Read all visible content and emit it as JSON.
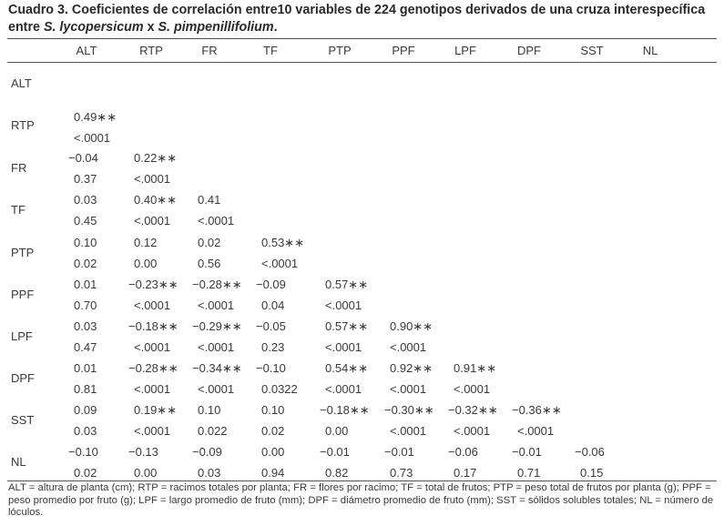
{
  "caption": {
    "prefix": "Cuadro 3. Coeficientes de correlación entre10 variables de 224 genotipos derivados de una cruza interespecífica entre ",
    "species1": "S. lycopersicum",
    "middle": " x ",
    "species2": "S. pimpenillifolium",
    "suffix": "."
  },
  "columns": [
    "ALT",
    "RTP",
    "FR",
    "TF",
    "PTP",
    "PPF",
    "LPF",
    "DPF",
    "SST",
    "NL"
  ],
  "rows": [
    {
      "label": "ALT",
      "r": [],
      "p": []
    },
    {
      "label": "RTP",
      "r": [
        "0.49**"
      ],
      "p": [
        "<.0001"
      ]
    },
    {
      "label": "FR",
      "r": [
        "-0.04",
        "0.22**"
      ],
      "p": [
        "0.37",
        "<.0001"
      ]
    },
    {
      "label": "TF",
      "r": [
        "0.03",
        "0.40**",
        "0.41"
      ],
      "p": [
        "0.45",
        "<.0001",
        "<.0001"
      ]
    },
    {
      "label": "PTP",
      "r": [
        "0.10",
        "0.12",
        "0.02",
        "0.53**"
      ],
      "p": [
        "0.02",
        "0.00",
        "0.56",
        "<.0001"
      ]
    },
    {
      "label": "PPF",
      "r": [
        "0.01",
        "-0.23**",
        "-0.28**",
        "-0.09",
        "0.57**"
      ],
      "p": [
        "0.70",
        "<.0001",
        "<.0001",
        "0.04",
        "<.0001"
      ]
    },
    {
      "label": "LPF",
      "r": [
        "0.03",
        "-0.18**",
        "-0.29**",
        "-0.05",
        "0.57**",
        "0.90**"
      ],
      "p": [
        "0.47",
        "<.0001",
        "<.0001",
        "0.23",
        "<.0001",
        "<.0001"
      ]
    },
    {
      "label": "DPF",
      "r": [
        "0.01",
        "-0.28**",
        "-0.34**",
        "-0.10",
        "0.54**",
        "0.92**",
        "0.91**"
      ],
      "p": [
        "0.81",
        "<.0001",
        "<.0001",
        "0.0322",
        "<.0001",
        "<.0001",
        "<.0001"
      ]
    },
    {
      "label": "SST",
      "r": [
        "0.09",
        "0.19**",
        "0.10",
        "0.10",
        "-0.18**",
        "-0.30**",
        "-0.32**",
        "-0.36**"
      ],
      "p": [
        "0.03",
        "<.0001",
        "0.022",
        "0.02",
        "0.00",
        "<.0001",
        "<.0001",
        "<.0001"
      ]
    },
    {
      "label": "NL",
      "r": [
        "-0.10",
        "-0.13",
        "-0.09",
        "0.00",
        "-0.01",
        "-0.01",
        "-0.06",
        "-0.01",
        "-0.06"
      ],
      "p": [
        "0.02",
        "0.00",
        "0.03",
        "0.94",
        "0.82",
        "0.73",
        "0.17",
        "0.71",
        "0.15"
      ]
    }
  ],
  "footnote": "ALT = altura de planta (cm); RTP = racimos totales por planta; FR = flores por racimo; TF = total de frutos; PTP = peso total de frutos por planta (g); PPF = peso promedio por fruto (g); LPF = largo promedio de fruto (mm); DPF = diámetro promedio de fruto (mm); SST = sólidos solubles totales; NL = número de lóculos."
}
